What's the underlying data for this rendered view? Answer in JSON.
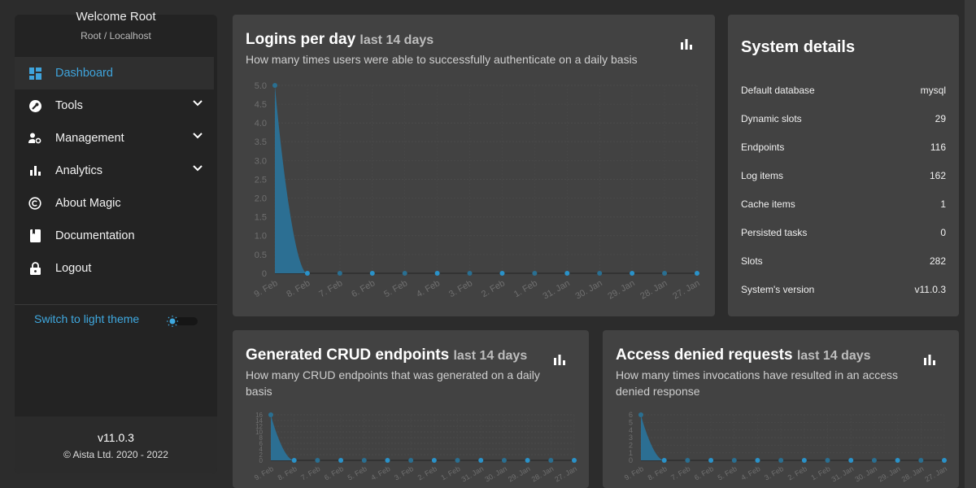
{
  "sidebar": {
    "welcome": "Welcome Root",
    "user": "Root / Localhost",
    "items": [
      {
        "label": "Dashboard",
        "icon": "dashboard-icon"
      },
      {
        "label": "Tools",
        "icon": "wrench-icon"
      },
      {
        "label": "Management",
        "icon": "manage-accounts-icon"
      },
      {
        "label": "Analytics",
        "icon": "bar-chart-icon"
      },
      {
        "label": "About Magic",
        "icon": "copyright-icon"
      },
      {
        "label": "Documentation",
        "icon": "book-icon"
      },
      {
        "label": "Logout",
        "icon": "lock-icon"
      }
    ],
    "theme_label": "Switch to light theme",
    "version": "v11.0.3",
    "copyright": "© Aista Ltd. 2020 - 2022"
  },
  "logins": {
    "title": "Logins per day",
    "range": "last 14 days",
    "desc": "How many times users were able to successfully authenticate on a daily basis"
  },
  "crud": {
    "title": "Generated CRUD endpoints",
    "range": "last 14 days",
    "desc": "How many CRUD endpoints that was generated on a daily basis"
  },
  "denied": {
    "title": "Access denied requests",
    "range": "last 14 days",
    "desc": "How many times invocations have resulted in an access denied response"
  },
  "system": {
    "title": "System details",
    "rows": [
      [
        "Default database",
        "mysql"
      ],
      [
        "Dynamic slots",
        "29"
      ],
      [
        "Endpoints",
        "116"
      ],
      [
        "Log items",
        "162"
      ],
      [
        "Cache items",
        "1"
      ],
      [
        "Persisted tasks",
        "0"
      ],
      [
        "Slots",
        "282"
      ],
      [
        "System's version",
        "v11.0.3"
      ]
    ]
  },
  "colors": {
    "accent": "#3fa4dc",
    "area": "#2c6f93"
  },
  "chart_data": [
    {
      "type": "area",
      "title": "Logins per day",
      "categories": [
        "9. Feb",
        "8. Feb",
        "7. Feb",
        "6. Feb",
        "5. Feb",
        "4. Feb",
        "3. Feb",
        "2. Feb",
        "1. Feb",
        "31. Jan",
        "30. Jan",
        "29. Jan",
        "28. Jan",
        "27. Jan"
      ],
      "values": [
        5,
        0,
        0,
        0,
        0,
        0,
        0,
        0,
        0,
        0,
        0,
        0,
        0,
        0
      ],
      "ylim": [
        0,
        5
      ],
      "yticks": [
        "0",
        "0.5",
        "1.0",
        "1.5",
        "2.0",
        "2.5",
        "3.0",
        "3.5",
        "4.0",
        "4.5",
        "5.0"
      ]
    },
    {
      "type": "area",
      "title": "Generated CRUD endpoints",
      "categories": [
        "9. Feb",
        "8. Feb",
        "7. Feb",
        "6. Feb",
        "5. Feb",
        "4. Feb",
        "3. Feb",
        "2. Feb",
        "1. Feb",
        "31. Jan",
        "30. Jan",
        "29. Jan",
        "28. Jan",
        "27. Jan"
      ],
      "values": [
        16,
        0,
        0,
        0,
        0,
        0,
        0,
        0,
        0,
        0,
        0,
        0,
        0,
        0
      ],
      "ylim": [
        0,
        16
      ],
      "yticks": [
        "0",
        "2",
        "4",
        "6",
        "8",
        "10",
        "12",
        "14",
        "16"
      ]
    },
    {
      "type": "area",
      "title": "Access denied requests",
      "categories": [
        "9. Feb",
        "8. Feb",
        "7. Feb",
        "6. Feb",
        "5. Feb",
        "4. Feb",
        "3. Feb",
        "2. Feb",
        "1. Feb",
        "31. Jan",
        "30. Jan",
        "29. Jan",
        "28. Jan",
        "27. Jan"
      ],
      "values": [
        6,
        0,
        0,
        0,
        0,
        0,
        0,
        0,
        0,
        0,
        0,
        0,
        0,
        0
      ],
      "ylim": [
        0,
        6
      ],
      "yticks": [
        "0",
        "1",
        "2",
        "3",
        "4",
        "5",
        "6"
      ]
    }
  ]
}
